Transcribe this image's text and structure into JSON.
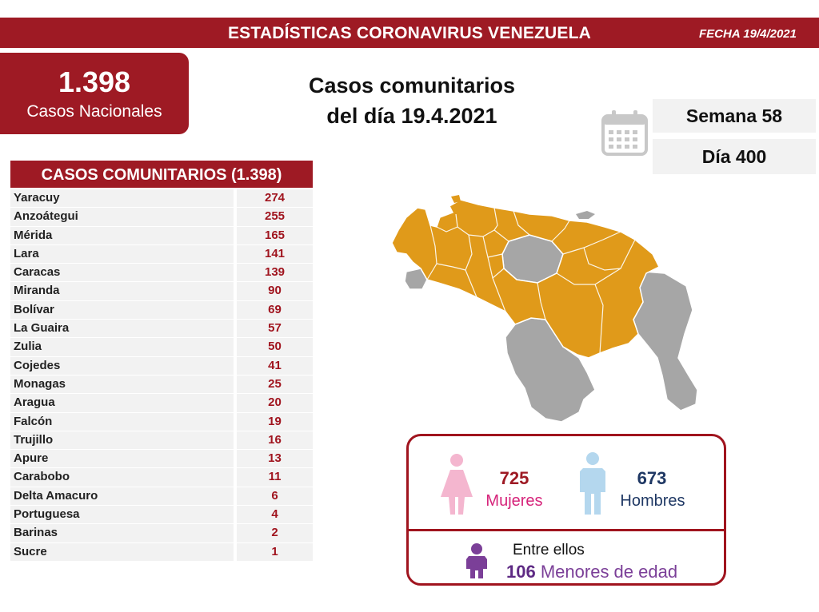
{
  "header": {
    "title": "ESTADÍSTICAS CORONAVIRUS VENEZUELA",
    "date": "FECHA 19/4/2021"
  },
  "national": {
    "number": "1.398",
    "label": "Casos Nacionales"
  },
  "main_title": {
    "line1": "Casos comunitarios",
    "line2": "del día 19.4.2021"
  },
  "week": "Semana 58",
  "day": "Día 400",
  "table": {
    "header": "CASOS COMUNITARIOS (1.398)",
    "rows": [
      {
        "name": "Yaracuy",
        "value": "274"
      },
      {
        "name": "Anzoátegui",
        "value": "255"
      },
      {
        "name": "Mérida",
        "value": "165"
      },
      {
        "name": "Lara",
        "value": "141"
      },
      {
        "name": "Caracas",
        "value": "139"
      },
      {
        "name": "Miranda",
        "value": "90"
      },
      {
        "name": "Bolívar",
        "value": "69"
      },
      {
        "name": "La Guaira",
        "value": "57"
      },
      {
        "name": "Zulia",
        "value": "50"
      },
      {
        "name": "Cojedes",
        "value": "41"
      },
      {
        "name": "Monagas",
        "value": "25"
      },
      {
        "name": "Aragua",
        "value": "20"
      },
      {
        "name": "Falcón",
        "value": "19"
      },
      {
        "name": "Trujillo",
        "value": "16"
      },
      {
        "name": "Apure",
        "value": "13"
      },
      {
        "name": "Carabobo",
        "value": "11"
      },
      {
        "name": "Delta Amacuro",
        "value": "6"
      },
      {
        "name": "Portuguesa",
        "value": "4"
      },
      {
        "name": "Barinas",
        "value": "2"
      },
      {
        "name": "Sucre",
        "value": "1"
      }
    ]
  },
  "gender": {
    "women_count": "725",
    "women_label": "Mujeres",
    "men_count": "673",
    "men_label": "Hombres",
    "between_label": "Entre ellos",
    "minors_count": "106",
    "minors_label": "Menores de edad"
  },
  "colors": {
    "brand_red": "#9e1a24",
    "map_orange": "#e09a1a",
    "map_gray": "#a6a6a6",
    "women_pink": "#f4b6cf",
    "men_blue": "#b4d7ee",
    "minors_purple": "#7b3f98"
  }
}
